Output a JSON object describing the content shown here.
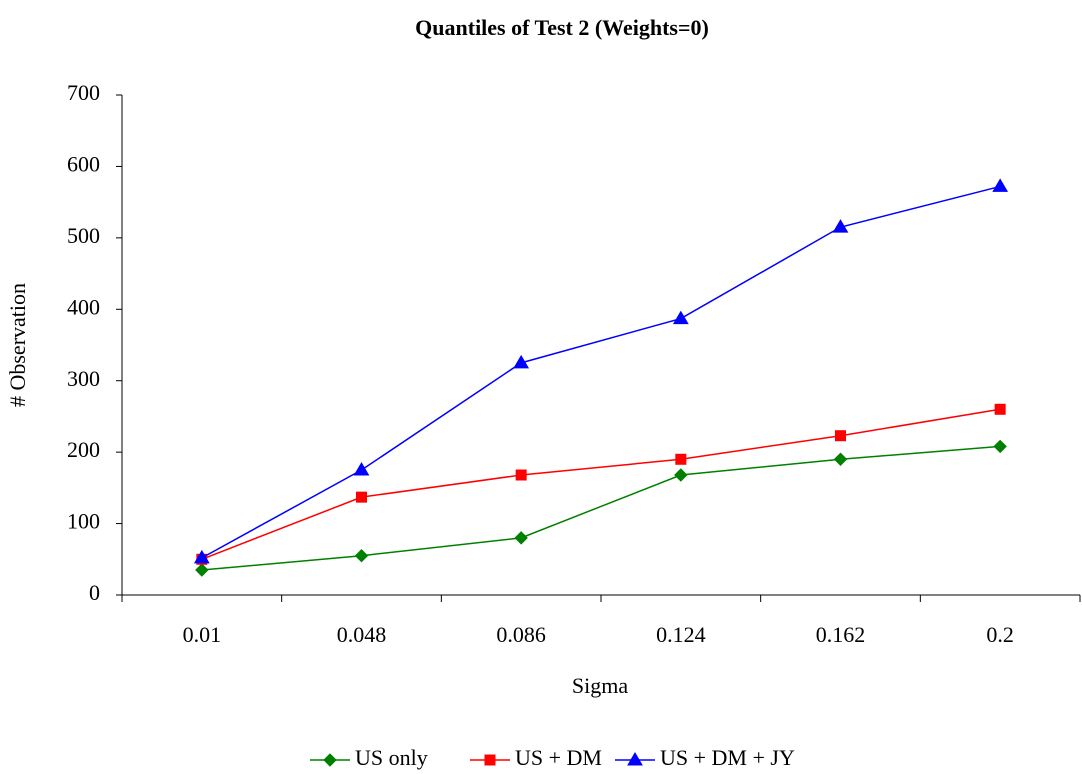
{
  "chart_data": {
    "type": "line",
    "title": "Quantiles of Test 2 (Weights=0)",
    "x_label": "Sigma",
    "y_label": "# Observation",
    "categories": [
      "0.01",
      "0.048",
      "0.086",
      "0.124",
      "0.162",
      "0.2"
    ],
    "series": [
      {
        "name": "US only",
        "color": "#008000",
        "marker": "diamond",
        "values": [
          35,
          55,
          80,
          168,
          190,
          208
        ]
      },
      {
        "name": "US + DM",
        "color": "#ff0000",
        "marker": "square",
        "values": [
          50,
          137,
          168,
          190,
          223,
          260
        ]
      },
      {
        "name": "US + DM + JY",
        "color": "#0000ff",
        "marker": "triangle",
        "values": [
          52,
          175,
          325,
          387,
          515,
          572
        ]
      }
    ],
    "ylim": [
      0,
      700
    ],
    "yticks": [
      0,
      100,
      200,
      300,
      400,
      500,
      600,
      700
    ],
    "grid": false,
    "legend": "bottom"
  }
}
